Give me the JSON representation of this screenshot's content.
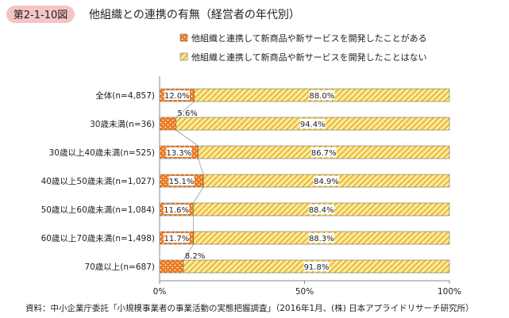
{
  "header": {
    "figure_number": "第2-1-10図",
    "title": "他組織との連携の有無（経営者の年代別）"
  },
  "source": "資料：中小企業庁委託「小規模事業者の事業活動の実態把握調査」（2016年1月、(株) 日本アプライドリサーチ研究所）",
  "colors": {
    "badge_bg": "#f5c4c4",
    "series1_fill": "#ee7a1e",
    "series1_dot": "#ffffff",
    "series2_fill": "#fde9a8",
    "series2_hatch": "#e6b820",
    "axis": "#888888",
    "connector": "#9a9a9a"
  },
  "chart_data": {
    "type": "bar",
    "orientation": "horizontal",
    "stacked": true,
    "categories": [
      "全体(n=4,857)",
      "30歳未満(n=36)",
      "30歳以上40歳未満(n=525)",
      "40歳以上50歳未満(n=1,027)",
      "50歳以上60歳未満(n=1,084)",
      "60歳以上70歳未満(n=1,498)",
      "70歳以上(n=687)"
    ],
    "series": [
      {
        "name": "他組織と連携して新商品や新サービスを開発したことがある",
        "values": [
          12.0,
          5.6,
          13.3,
          15.1,
          11.6,
          11.7,
          8.2
        ],
        "labels": [
          "12.0%",
          "5.6%",
          "13.3%",
          "15.1%",
          "11.6%",
          "11.7%",
          "8.2%"
        ]
      },
      {
        "name": "他組織と連携して新商品や新サービスを開発したことはない",
        "values": [
          88.0,
          94.4,
          86.7,
          84.9,
          88.4,
          88.3,
          91.8
        ],
        "labels": [
          "88.0%",
          "94.4%",
          "86.7%",
          "84.9%",
          "88.4%",
          "88.3%",
          "91.8%"
        ]
      }
    ],
    "xlim": [
      0,
      100
    ],
    "x_ticks": [
      0,
      50,
      100
    ],
    "x_tick_labels": [
      "0%",
      "50%",
      "100%"
    ],
    "legend_position": "top-right",
    "grid": false
  }
}
